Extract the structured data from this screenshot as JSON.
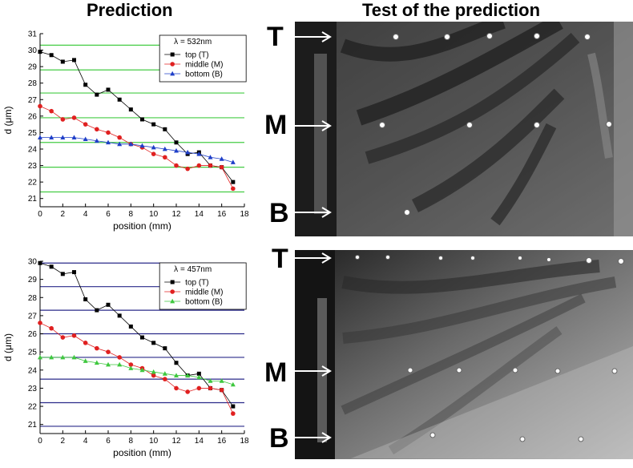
{
  "headings": {
    "left": "Prediction",
    "right": "Test of the prediction"
  },
  "markers": {
    "top": "T",
    "middle": "M",
    "bottom": "B"
  },
  "colors": {
    "top_series": "#000000",
    "middle_series": "#e02020",
    "bottom_series_532": "#1f3fc8",
    "bottom_series_457": "#3fc83f",
    "fringe_532": "#44cc44",
    "fringe_457": "#2a2a8a"
  },
  "chart_data": [
    {
      "type": "line",
      "xlabel": "position (mm)",
      "ylabel": "d (μm)",
      "xlim": [
        0,
        18
      ],
      "ylim": [
        20.5,
        31
      ],
      "x_ticks": [
        0,
        2,
        4,
        6,
        8,
        10,
        12,
        14,
        16,
        18
      ],
      "y_ticks": [
        21,
        22,
        23,
        24,
        25,
        26,
        27,
        28,
        29,
        30,
        31
      ],
      "legend_title": "λ = 532nm",
      "legend_position": "top-right",
      "fringe_lines": [
        21.4,
        22.9,
        24.4,
        25.9,
        27.4,
        28.8,
        30.3
      ],
      "x": [
        0,
        1,
        2,
        3,
        4,
        5,
        6,
        7,
        8,
        9,
        10,
        11,
        12,
        13,
        14,
        15,
        16,
        17
      ],
      "series": [
        {
          "name": "top (T)",
          "marker": "square",
          "color": "#000000",
          "values": [
            29.9,
            29.7,
            29.3,
            29.4,
            27.9,
            27.3,
            27.6,
            27.0,
            26.4,
            25.8,
            25.5,
            25.2,
            24.4,
            23.7,
            23.8,
            23.0,
            22.9,
            22.0
          ]
        },
        {
          "name": "middle (M)",
          "marker": "circle",
          "color": "#e02020",
          "values": [
            26.6,
            26.3,
            25.8,
            25.9,
            25.5,
            25.2,
            25.0,
            24.7,
            24.3,
            24.1,
            23.7,
            23.5,
            23.0,
            22.8,
            23.0,
            23.0,
            22.9,
            21.6
          ]
        },
        {
          "name": "bottom (B)",
          "marker": "triangle",
          "color": "#1f3fc8",
          "values": [
            24.7,
            24.7,
            24.7,
            24.7,
            24.6,
            24.5,
            24.4,
            24.3,
            24.3,
            24.2,
            24.1,
            24.0,
            23.9,
            23.8,
            23.7,
            23.5,
            23.4,
            23.2
          ]
        }
      ]
    },
    {
      "type": "line",
      "xlabel": "position (mm)",
      "ylabel": "d (μm)",
      "xlim": [
        0,
        18
      ],
      "ylim": [
        20.5,
        30
      ],
      "x_ticks": [
        0,
        2,
        4,
        6,
        8,
        10,
        12,
        14,
        16,
        18
      ],
      "y_ticks": [
        21,
        22,
        23,
        24,
        25,
        26,
        27,
        28,
        29,
        30
      ],
      "legend_title": "λ = 457nm",
      "legend_position": "top-right",
      "fringe_lines": [
        20.9,
        22.2,
        23.5,
        24.7,
        26.0,
        27.3,
        28.6,
        29.9
      ],
      "x": [
        0,
        1,
        2,
        3,
        4,
        5,
        6,
        7,
        8,
        9,
        10,
        11,
        12,
        13,
        14,
        15,
        16,
        17
      ],
      "series": [
        {
          "name": "top (T)",
          "marker": "square",
          "color": "#000000",
          "values": [
            29.9,
            29.7,
            29.3,
            29.4,
            27.9,
            27.3,
            27.6,
            27.0,
            26.4,
            25.8,
            25.5,
            25.2,
            24.4,
            23.7,
            23.8,
            23.0,
            22.9,
            22.0
          ]
        },
        {
          "name": "middle (M)",
          "marker": "circle",
          "color": "#e02020",
          "values": [
            26.6,
            26.3,
            25.8,
            25.9,
            25.5,
            25.2,
            25.0,
            24.7,
            24.3,
            24.1,
            23.7,
            23.5,
            23.0,
            22.8,
            23.0,
            23.0,
            22.9,
            21.6
          ]
        },
        {
          "name": "bottom (B)",
          "marker": "triangle",
          "color": "#3fc83f",
          "values": [
            24.7,
            24.7,
            24.7,
            24.7,
            24.5,
            24.4,
            24.3,
            24.3,
            24.1,
            24.0,
            23.9,
            23.8,
            23.7,
            23.7,
            23.6,
            23.4,
            23.4,
            23.2
          ]
        }
      ]
    }
  ]
}
